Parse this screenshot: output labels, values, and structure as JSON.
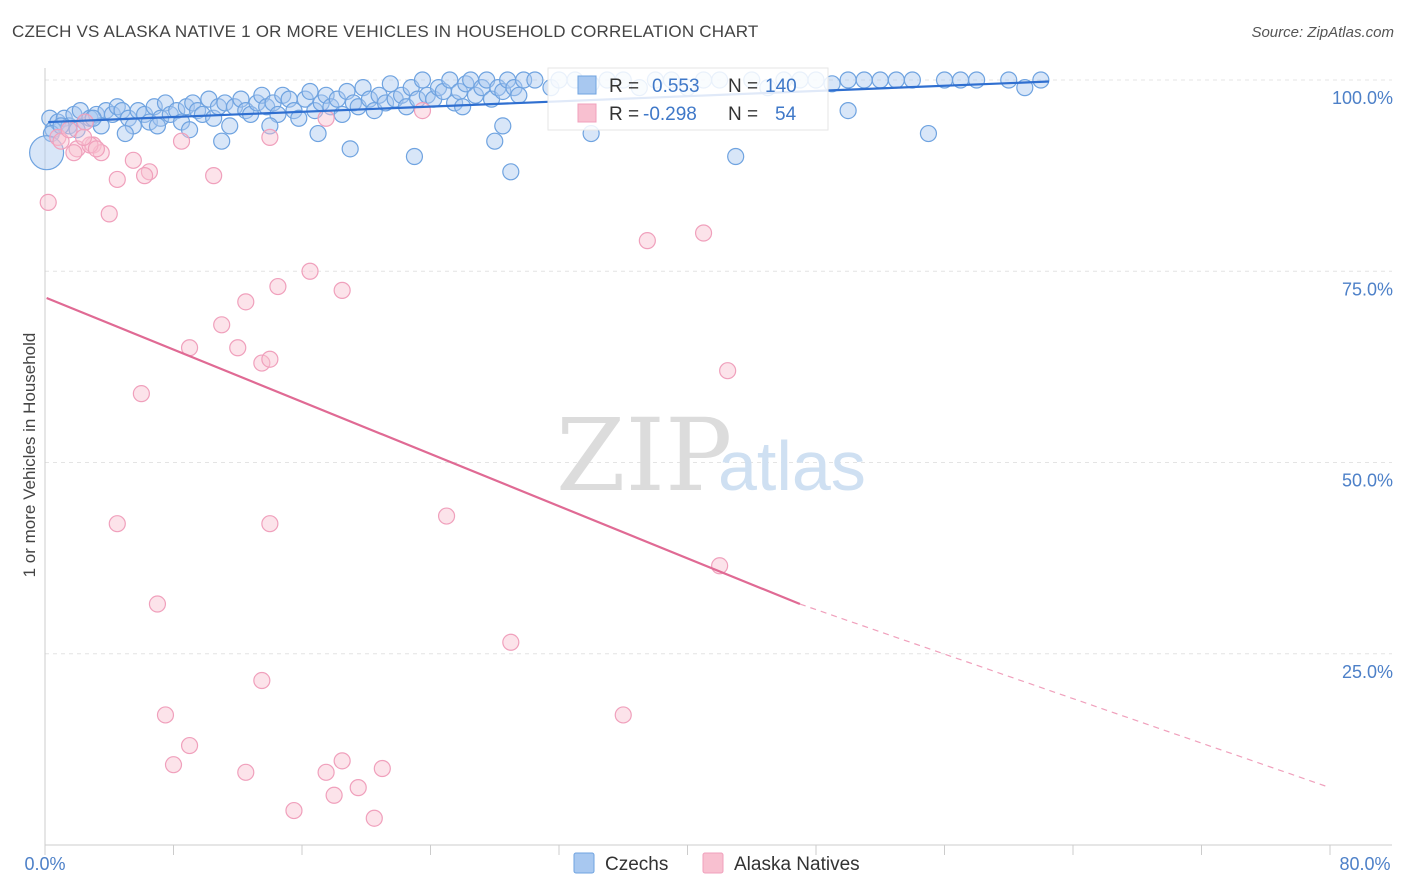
{
  "header": {
    "title": "CZECH VS ALASKA NATIVE 1 OR MORE VEHICLES IN HOUSEHOLD CORRELATION CHART",
    "source": "Source: ZipAtlas.com"
  },
  "watermark": {
    "zip": "ZIP",
    "atlas": "atlas"
  },
  "stats_box": {
    "rows": [
      {
        "r_label": "R =",
        "r_value": "0.553",
        "n_label": "N =",
        "n_value": "140",
        "color": "#6fa3e0"
      },
      {
        "r_label": "R =",
        "r_value": "-0.298",
        "n_label": "N =",
        "n_value": "54",
        "color": "#f4a8c0"
      }
    ]
  },
  "legend": {
    "items": [
      {
        "label": "Czechs",
        "color": "#a8c8f0"
      },
      {
        "label": "Alaska Natives",
        "color": "#f8c0d0"
      }
    ]
  },
  "chart_data": {
    "type": "scatter",
    "xlabel": "",
    "ylabel": "1 or more Vehicles in Household",
    "xlim": [
      0,
      80
    ],
    "ylim": [
      0,
      100
    ],
    "x_tick_labels": [
      "0.0%",
      "80.0%"
    ],
    "y_tick_labels": [
      "100.0%",
      "75.0%",
      "50.0%",
      "25.0%"
    ],
    "y_ticks": [
      100,
      75,
      50,
      25
    ],
    "grid": true,
    "legend_position": "bottom",
    "series": [
      {
        "name": "Czechs",
        "color": "#6fa3e0",
        "trend": {
          "x0": 0.2,
          "y0": 94.5,
          "x1": 62.5,
          "y1": 99.8,
          "dashed_to": null
        },
        "points": [
          [
            0.3,
            95
          ],
          [
            0.5,
            93.5
          ],
          [
            0.8,
            94.5
          ],
          [
            1.2,
            95
          ],
          [
            1.5,
            94
          ],
          [
            1.8,
            95.5
          ],
          [
            2.2,
            96
          ],
          [
            2.5,
            94.5
          ],
          [
            2.8,
            95
          ],
          [
            3.2,
            95.5
          ],
          [
            3.5,
            94
          ],
          [
            3.8,
            96
          ],
          [
            4.2,
            95.5
          ],
          [
            4.5,
            96.5
          ],
          [
            4.8,
            96
          ],
          [
            5.2,
            95
          ],
          [
            5.5,
            94
          ],
          [
            5.8,
            96
          ],
          [
            6.2,
            95.5
          ],
          [
            6.5,
            94.5
          ],
          [
            6.8,
            96.5
          ],
          [
            7.2,
            95
          ],
          [
            7.5,
            97
          ],
          [
            7.8,
            95.5
          ],
          [
            8.2,
            96
          ],
          [
            8.5,
            94.5
          ],
          [
            8.8,
            96.5
          ],
          [
            9.2,
            97
          ],
          [
            9.5,
            96
          ],
          [
            9.8,
            95.5
          ],
          [
            10.2,
            97.5
          ],
          [
            10.5,
            95
          ],
          [
            10.8,
            96.5
          ],
          [
            11.2,
            97
          ],
          [
            11.5,
            94
          ],
          [
            11.8,
            96.5
          ],
          [
            12.2,
            97.5
          ],
          [
            12.5,
            96
          ],
          [
            12.8,
            95.5
          ],
          [
            13.2,
            97
          ],
          [
            13.5,
            98
          ],
          [
            13.8,
            96.5
          ],
          [
            14.2,
            97
          ],
          [
            14.5,
            95.5
          ],
          [
            14.8,
            98
          ],
          [
            15.2,
            97.5
          ],
          [
            15.5,
            96
          ],
          [
            15.8,
            95
          ],
          [
            16.2,
            97.5
          ],
          [
            16.5,
            98.5
          ],
          [
            16.8,
            96
          ],
          [
            17.2,
            97
          ],
          [
            17.5,
            98
          ],
          [
            17.8,
            96.5
          ],
          [
            18.2,
            97.5
          ],
          [
            18.5,
            95.5
          ],
          [
            18.8,
            98.5
          ],
          [
            19.2,
            97
          ],
          [
            19.5,
            96.5
          ],
          [
            19.8,
            99
          ],
          [
            20.2,
            97.5
          ],
          [
            20.5,
            96
          ],
          [
            20.8,
            98
          ],
          [
            21.2,
            97
          ],
          [
            21.5,
            99.5
          ],
          [
            21.8,
            97.5
          ],
          [
            22.2,
            98
          ],
          [
            22.5,
            96.5
          ],
          [
            22.8,
            99
          ],
          [
            23.2,
            97.5
          ],
          [
            23.5,
            100
          ],
          [
            23.8,
            98
          ],
          [
            24.2,
            97.5
          ],
          [
            24.5,
            99
          ],
          [
            24.8,
            98.5
          ],
          [
            25.2,
            100
          ],
          [
            25.5,
            97
          ],
          [
            25.8,
            98.5
          ],
          [
            26.2,
            99.5
          ],
          [
            26.5,
            100
          ],
          [
            26.8,
            98
          ],
          [
            27.2,
            99
          ],
          [
            27.5,
            100
          ],
          [
            27.8,
            97.5
          ],
          [
            28.2,
            99
          ],
          [
            28.5,
            98.5
          ],
          [
            28.8,
            100
          ],
          [
            29.2,
            99
          ],
          [
            29.5,
            98
          ],
          [
            29.8,
            100
          ],
          [
            30.5,
            100
          ],
          [
            31.5,
            99
          ],
          [
            32,
            100
          ],
          [
            33,
            100
          ],
          [
            34,
            99.5
          ],
          [
            35,
            100
          ],
          [
            36,
            100
          ],
          [
            37,
            99
          ],
          [
            38,
            100
          ],
          [
            39,
            100
          ],
          [
            40,
            99
          ],
          [
            41,
            100
          ],
          [
            42,
            100
          ],
          [
            44,
            100
          ],
          [
            46,
            100
          ],
          [
            48,
            100
          ],
          [
            50,
            100
          ],
          [
            52,
            100
          ],
          [
            54,
            100
          ],
          [
            56,
            100
          ],
          [
            58,
            100
          ],
          [
            60,
            100
          ],
          [
            62,
            100
          ],
          [
            61,
            99
          ],
          [
            57,
            100
          ],
          [
            53,
            100
          ],
          [
            51,
            100
          ],
          [
            49,
            99.5
          ],
          [
            47,
            100
          ],
          [
            45,
            99
          ],
          [
            0.4,
            93
          ],
          [
            1,
            94
          ],
          [
            2,
            93.5
          ],
          [
            3,
            95
          ],
          [
            5,
            93
          ],
          [
            7,
            94
          ],
          [
            9,
            93.5
          ],
          [
            11,
            92
          ],
          [
            14,
            94
          ],
          [
            17,
            93
          ],
          [
            19,
            91
          ],
          [
            23,
            90
          ],
          [
            28,
            92
          ],
          [
            29,
            88
          ],
          [
            34,
            93
          ],
          [
            43,
            90
          ],
          [
            50,
            96
          ],
          [
            55,
            93
          ],
          [
            28.5,
            94
          ],
          [
            26,
            96.5
          ]
        ],
        "large_point": [
          0.1,
          90.5
        ]
      },
      {
        "name": "Alaska Natives",
        "color": "#f0a0bc",
        "trend": {
          "x0": 0.1,
          "y0": 71.5,
          "x1": 47,
          "y1": 31.5,
          "dashed_x1": 80,
          "dashed_y1": 7.5
        },
        "points": [
          [
            0.2,
            84
          ],
          [
            0.8,
            92.5
          ],
          [
            1,
            92
          ],
          [
            1.5,
            93.5
          ],
          [
            2,
            91
          ],
          [
            2.5,
            94.5
          ],
          [
            3,
            91.5
          ],
          [
            3.5,
            90.5
          ],
          [
            4,
            82.5
          ],
          [
            4.5,
            87
          ],
          [
            5.5,
            89.5
          ],
          [
            6.5,
            88
          ],
          [
            8.5,
            92
          ],
          [
            10.5,
            87.5
          ],
          [
            14,
            92.5
          ],
          [
            17.5,
            95
          ],
          [
            23.5,
            96
          ],
          [
            37.5,
            79
          ],
          [
            41,
            80
          ],
          [
            12.5,
            71
          ],
          [
            14.5,
            73
          ],
          [
            16.5,
            75
          ],
          [
            18.5,
            72.5
          ],
          [
            11,
            68
          ],
          [
            9,
            65
          ],
          [
            12,
            65
          ],
          [
            13.5,
            63
          ],
          [
            14,
            63.5
          ],
          [
            42.5,
            62
          ],
          [
            6,
            59
          ],
          [
            4.5,
            42
          ],
          [
            14,
            42
          ],
          [
            25,
            43
          ],
          [
            42,
            36.5
          ],
          [
            7,
            31.5
          ],
          [
            29,
            26.5
          ],
          [
            13.5,
            21.5
          ],
          [
            7.5,
            17
          ],
          [
            36,
            17
          ],
          [
            9,
            13
          ],
          [
            8,
            10.5
          ],
          [
            12.5,
            9.5
          ],
          [
            17.5,
            9.5
          ],
          [
            18.5,
            11
          ],
          [
            21,
            10
          ],
          [
            18,
            6.5
          ],
          [
            19.5,
            7.5
          ],
          [
            15.5,
            4.5
          ],
          [
            20.5,
            3.5
          ],
          [
            2.8,
            91.5
          ],
          [
            1.8,
            90.5
          ],
          [
            3.2,
            91
          ],
          [
            6.2,
            87.5
          ],
          [
            2.4,
            92.5
          ]
        ]
      }
    ]
  }
}
